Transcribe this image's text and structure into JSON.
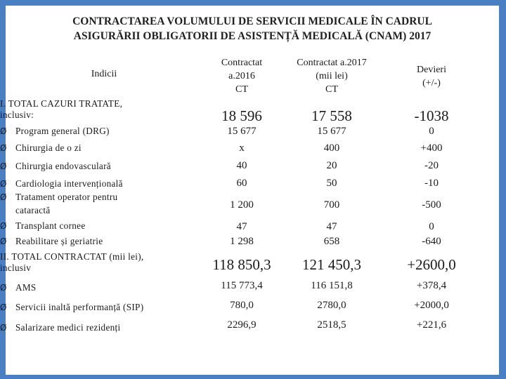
{
  "title": {
    "line1": "CONTRACTAREA VOLUMULUI DE SERVICII MEDICALE ÎN CADRUL",
    "line2": "ASIGURĂRII OBLIGATORII DE ASISTENȚĂ MEDICALĂ (CNAM) 2017"
  },
  "header": {
    "indicii": "Indicii",
    "col1": [
      "Contractat",
      "a.2016",
      "CT"
    ],
    "col2": [
      "Contractat a.2017",
      "(mii lei)",
      "CT"
    ],
    "col3": [
      "Devieri",
      "(+/-)"
    ]
  },
  "arrow_glyph": "Ø",
  "rows": [
    {
      "label": [
        "I. TOTAL CAZURI TRATATE,",
        "inclusiv:"
      ],
      "v1": "18 596",
      "v2": "17 558",
      "v3": "-1038",
      "big": true
    },
    {
      "label": [
        "Program general (DRG)"
      ],
      "v1": "15 677",
      "v2": "15 677",
      "v3": "0"
    },
    {
      "label": [
        "Chirurgia de o zi"
      ],
      "v1": "x",
      "v2": "400",
      "v3": "+400"
    },
    {
      "label": [
        "Chirurgia endovasculară"
      ],
      "v1": "40",
      "v2": "20",
      "v3": "-20"
    },
    {
      "label": [
        "Cardiologia intervențională"
      ],
      "v1": "60",
      "v2": "50",
      "v3": "-10"
    },
    {
      "label": [
        "Tratament operator pentru",
        "cataractă"
      ],
      "v1": "1 200",
      "v2": "700",
      "v3": "-500"
    },
    {
      "label": [
        "Transplant cornee"
      ],
      "v1": "47",
      "v2": "47",
      "v3": "0"
    },
    {
      "label": [
        "Reabilitare și geriatrie"
      ],
      "v1": "1 298",
      "v2": "658",
      "v3": "-640"
    },
    {
      "label": [
        "II. TOTAL CONTRACTAT (mii lei),",
        "inclusiv"
      ],
      "v1": "118 850,3",
      "v2": "121 450,3",
      "v3": "+2600,0",
      "big": true
    },
    {
      "label": [
        "AMS"
      ],
      "v1": "115 773,4",
      "v2": "116 151,8",
      "v3": "+378,4"
    },
    {
      "label": [
        "Servicii inaltă performanță (SIP)"
      ],
      "v1": "780,0",
      "v2": "2780,0",
      "v3": "+2000,0"
    },
    {
      "label": [
        "Salarizare medici rezidenți"
      ],
      "v1": "2296,9",
      "v2": "2518,5",
      "v3": "+221,6"
    }
  ]
}
